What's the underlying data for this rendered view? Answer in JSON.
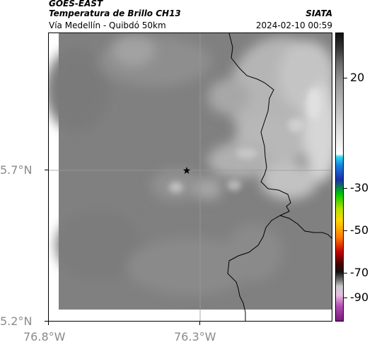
{
  "header": {
    "satellite": "GOES-EAST",
    "product": "Temperatura de Brillo CH13",
    "organization": "SIATA",
    "region": "Vía Medellín - Quibdó 50km",
    "timestamp": "2024-02-10 00:59"
  },
  "map": {
    "lat_labels": [
      "5.7°N",
      "5.2°N"
    ],
    "lon_labels": [
      "76.8°W",
      "76.3°W"
    ],
    "marker": "star-marker"
  },
  "colorbar": {
    "labels": [
      "20",
      "-30",
      "-50",
      "-70",
      "-90"
    ]
  }
}
